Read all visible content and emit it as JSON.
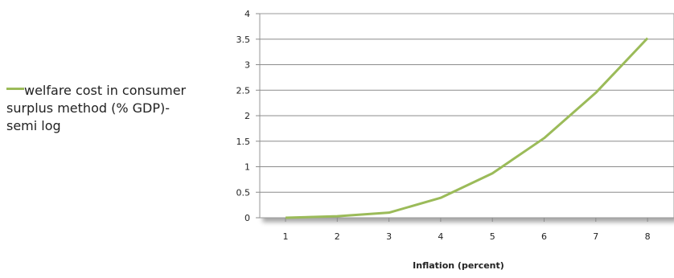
{
  "chart_data": {
    "type": "line",
    "title": "",
    "xlabel": "Inflation (percent)",
    "ylabel": "",
    "categories": [
      "1",
      "2",
      "3",
      "4",
      "5",
      "6",
      "7",
      "8"
    ],
    "series": [
      {
        "name": "welfare cost in consumer surplus method (% GDP)- semi log",
        "values": [
          0.0,
          0.03,
          0.1,
          0.39,
          0.87,
          1.56,
          2.45,
          3.52
        ],
        "color": "#9bbb59"
      }
    ],
    "ylim": [
      0,
      4
    ],
    "yticks": [
      "0",
      "0.5",
      "1",
      "1.5",
      "2",
      "2.5",
      "3",
      "3.5",
      "4"
    ],
    "grid": true,
    "legend_position": "left"
  }
}
